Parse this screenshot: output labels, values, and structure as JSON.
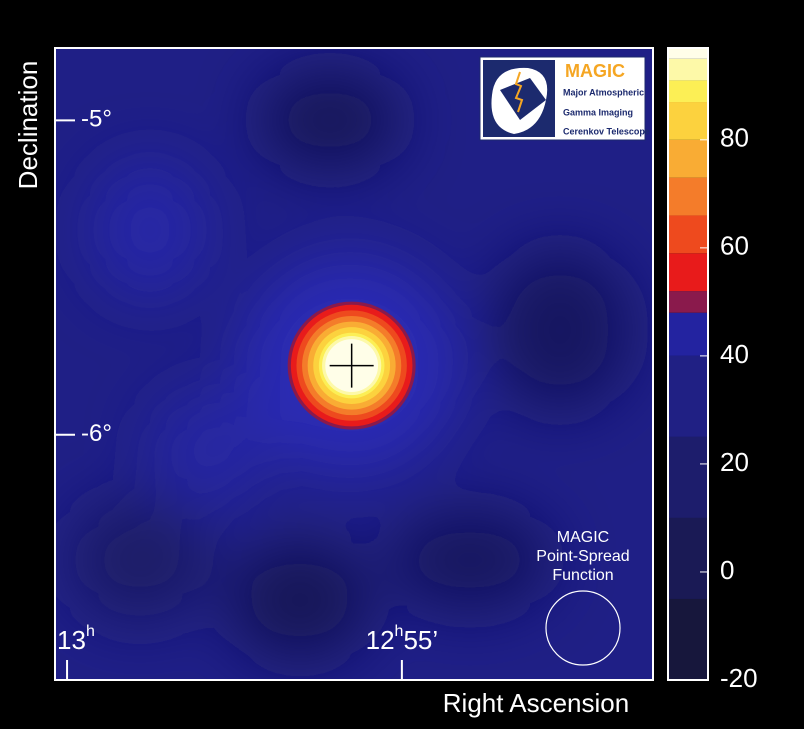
{
  "chart_data": {
    "type": "skymap",
    "xlabel": "Right Ascension",
    "ylabel": "Declination",
    "xlim": [
      60.18,
      51.25
    ],
    "xticks": [
      {
        "value": 60,
        "label": "13h"
      },
      {
        "value": 55,
        "label": "12h55’"
      }
    ],
    "ylim": [
      -6.78,
      -4.77
    ],
    "yticks": [
      {
        "value": -5,
        "label": "-5°"
      },
      {
        "value": -6,
        "label": "-6°"
      }
    ],
    "clim": [
      -20,
      97
    ],
    "cticks": [
      -20,
      0,
      20,
      40,
      60,
      80
    ],
    "colorscale": [
      [
        -20,
        "#17173c"
      ],
      [
        -5,
        "#1a1a55"
      ],
      [
        10,
        "#1d1d6c"
      ],
      [
        25,
        "#202084"
      ],
      [
        40,
        "#2323a0"
      ],
      [
        48,
        "#8a1a4c"
      ],
      [
        52,
        "#e81b1b"
      ],
      [
        59,
        "#ee4a1e"
      ],
      [
        66,
        "#f47c2a"
      ],
      [
        73,
        "#f9ac34"
      ],
      [
        80,
        "#fcd23e"
      ],
      [
        87,
        "#fcef55"
      ],
      [
        91,
        "#fdf9a8"
      ],
      [
        95,
        "#fffee8"
      ]
    ],
    "source": {
      "x": 55.75,
      "y": -5.78
    },
    "psf_label": [
      "MAGIC",
      "Point-Spread",
      "Function"
    ],
    "logo": {
      "title": "MAGIC",
      "lines": [
        "Major Atmospheric",
        "Gamma Imaging",
        "Cerenkov Telescope"
      ]
    }
  }
}
